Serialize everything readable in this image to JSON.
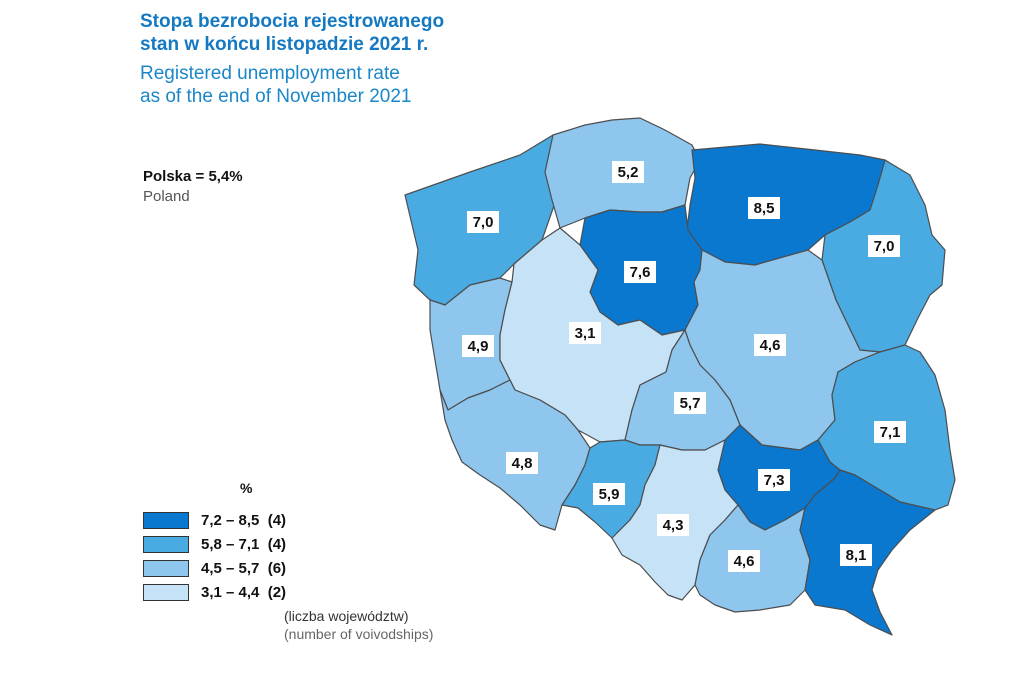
{
  "title": {
    "pl_line1": "Stopa bezrobocia rejestrowanego",
    "pl_line2": "stan w końcu listopadzie 2021 r.",
    "en_line1": "Registered unemployment rate",
    "en_line2": "as of the end of November 2021"
  },
  "national": {
    "label_pl": "Polska = 5,4%",
    "label_en": "Poland"
  },
  "colors": {
    "class1": "#0a78cf",
    "class2": "#4aaae2",
    "class3": "#8ec6ee",
    "class4": "#c6e2f7",
    "border": "#4d4d4d"
  },
  "regions": [
    {
      "value": "7,0",
      "class": 2
    },
    {
      "value": "5,2",
      "class": 3
    },
    {
      "value": "8,5",
      "class": 1
    },
    {
      "value": "7,6",
      "class": 1
    },
    {
      "value": "7,0",
      "class": 2
    },
    {
      "value": "4,9",
      "class": 3
    },
    {
      "value": "3,1",
      "class": 4
    },
    {
      "value": "4,6",
      "class": 3
    },
    {
      "value": "5,7",
      "class": 3
    },
    {
      "value": "7,1",
      "class": 2
    },
    {
      "value": "4,8",
      "class": 3
    },
    {
      "value": "5,9",
      "class": 2
    },
    {
      "value": "7,3",
      "class": 1
    },
    {
      "value": "4,3",
      "class": 4
    },
    {
      "value": "4,6",
      "class": 3
    },
    {
      "value": "8,1",
      "class": 1
    }
  ],
  "legend": {
    "unit": "%",
    "items": [
      {
        "label": "7,2 – 8,5  (4)",
        "class": 1
      },
      {
        "label": "5,8 – 7,1  (4)",
        "class": 2
      },
      {
        "label": "4,5 – 5,7  (6)",
        "class": 3
      },
      {
        "label": "3,1 – 4,4  (2)",
        "class": 4
      }
    ],
    "note_pl": "(liczba województw)",
    "note_en": "(number of voivodships)"
  }
}
